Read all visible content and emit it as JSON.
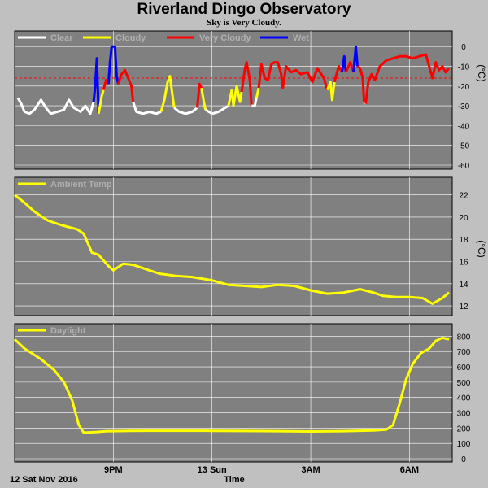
{
  "title": "Riverland Dingo Observatory",
  "subtitle": "Sky is Very Cloudy.",
  "colors": {
    "background": "#c0c0c0",
    "panel": "#808080",
    "grid": "#ffffff",
    "threshold": "#ff0000",
    "clear": "#ffffff",
    "cloudy": "#ffff00",
    "very_cloudy": "#ff0000",
    "wet": "#0000ff",
    "ambient": "#ffff00",
    "daylight": "#ffff00"
  },
  "x_axis": {
    "label": "Time",
    "date_label": "12 Sat Nov 2016",
    "range_hours": [
      18.0,
      31.3
    ],
    "ticks": [
      {
        "hour": 21,
        "label": "9PM"
      },
      {
        "hour": 24,
        "label": "13 Sun"
      },
      {
        "hour": 27,
        "label": "3AM"
      },
      {
        "hour": 30,
        "label": "6AM"
      }
    ]
  },
  "chart_data": [
    {
      "type": "line",
      "name": "sky",
      "unit": "(°C)",
      "ylim": [
        -60,
        5
      ],
      "yticks": [
        0,
        -10,
        -20,
        -30,
        -40,
        -50,
        -60
      ],
      "grid": true,
      "legend": [
        {
          "name": "Clear",
          "color": "#ffffff"
        },
        {
          "name": "Cloudy",
          "color": "#ffff00"
        },
        {
          "name": "Very Cloudy",
          "color": "#ff0000"
        },
        {
          "name": "Wet",
          "color": "#0000ff"
        }
      ],
      "threshold": -16,
      "segments": [
        {
          "cat": "clear",
          "points": [
            [
              18.1,
              -26
            ],
            [
              18.2,
              -29
            ],
            [
              18.3,
              -33
            ],
            [
              18.45,
              -34
            ],
            [
              18.6,
              -32
            ],
            [
              18.8,
              -27
            ],
            [
              18.95,
              -31
            ],
            [
              19.1,
              -34
            ],
            [
              19.3,
              -33
            ],
            [
              19.5,
              -32
            ],
            [
              19.65,
              -27
            ],
            [
              19.8,
              -31
            ],
            [
              20.0,
              -33
            ],
            [
              20.15,
              -30
            ],
            [
              20.3,
              -34
            ],
            [
              20.4,
              -28
            ]
          ]
        },
        {
          "cat": "wet",
          "points": [
            [
              20.4,
              -28
            ],
            [
              20.45,
              -20
            ],
            [
              20.5,
              -6
            ],
            [
              20.55,
              -34
            ]
          ]
        },
        {
          "cat": "cloudy",
          "points": [
            [
              20.55,
              -34
            ],
            [
              20.65,
              -25
            ],
            [
              20.7,
              -22
            ]
          ]
        },
        {
          "cat": "very_cloudy",
          "points": [
            [
              20.7,
              -22
            ],
            [
              20.78,
              -17
            ],
            [
              20.85,
              -19
            ]
          ]
        },
        {
          "cat": "wet",
          "points": [
            [
              20.85,
              -19
            ],
            [
              20.9,
              -8
            ],
            [
              20.95,
              0
            ],
            [
              21.05,
              0
            ],
            [
              21.1,
              -15
            ],
            [
              21.15,
              -19
            ]
          ]
        },
        {
          "cat": "very_cloudy",
          "points": [
            [
              21.15,
              -19
            ],
            [
              21.25,
              -14
            ],
            [
              21.35,
              -12
            ],
            [
              21.45,
              -16
            ],
            [
              21.55,
              -20
            ],
            [
              21.6,
              -28
            ]
          ]
        },
        {
          "cat": "clear",
          "points": [
            [
              21.6,
              -28
            ],
            [
              21.7,
              -33
            ],
            [
              21.9,
              -34
            ],
            [
              22.1,
              -33
            ],
            [
              22.3,
              -34
            ],
            [
              22.45,
              -33
            ]
          ]
        },
        {
          "cat": "cloudy",
          "points": [
            [
              22.45,
              -33
            ],
            [
              22.55,
              -27
            ],
            [
              22.65,
              -18
            ],
            [
              22.72,
              -15
            ],
            [
              22.8,
              -25
            ],
            [
              22.85,
              -31
            ]
          ]
        },
        {
          "cat": "clear",
          "points": [
            [
              22.85,
              -31
            ],
            [
              23.0,
              -33
            ],
            [
              23.2,
              -34
            ],
            [
              23.4,
              -33
            ],
            [
              23.55,
              -31
            ]
          ]
        },
        {
          "cat": "very_cloudy",
          "points": [
            [
              23.55,
              -31
            ],
            [
              23.62,
              -19
            ],
            [
              23.68,
              -21
            ]
          ]
        },
        {
          "cat": "cloudy",
          "points": [
            [
              23.68,
              -21
            ],
            [
              23.75,
              -28
            ],
            [
              23.8,
              -32
            ]
          ]
        },
        {
          "cat": "clear",
          "points": [
            [
              23.8,
              -32
            ],
            [
              24.0,
              -34
            ],
            [
              24.2,
              -33
            ],
            [
              24.4,
              -31
            ],
            [
              24.5,
              -30
            ]
          ]
        },
        {
          "cat": "cloudy",
          "points": [
            [
              24.5,
              -30
            ],
            [
              24.6,
              -22
            ],
            [
              24.65,
              -30
            ],
            [
              24.75,
              -20
            ],
            [
              24.85,
              -28
            ],
            [
              24.9,
              -23
            ]
          ]
        },
        {
          "cat": "very_cloudy",
          "points": [
            [
              24.9,
              -23
            ],
            [
              25.0,
              -11
            ],
            [
              25.05,
              -8
            ],
            [
              25.15,
              -17
            ],
            [
              25.2,
              -30
            ]
          ]
        },
        {
          "cat": "clear",
          "points": [
            [
              25.2,
              -30
            ],
            [
              25.3,
              -30
            ],
            [
              25.35,
              -26
            ]
          ]
        },
        {
          "cat": "cloudy",
          "points": [
            [
              25.35,
              -26
            ],
            [
              25.42,
              -21
            ]
          ]
        },
        {
          "cat": "very_cloudy",
          "points": [
            [
              25.42,
              -21
            ],
            [
              25.5,
              -9
            ],
            [
              25.6,
              -16
            ],
            [
              25.7,
              -17
            ],
            [
              25.8,
              -9
            ],
            [
              25.9,
              -8
            ],
            [
              26.0,
              -8
            ],
            [
              26.1,
              -14
            ],
            [
              26.15,
              -21
            ],
            [
              26.25,
              -10
            ],
            [
              26.4,
              -13
            ],
            [
              26.55,
              -12
            ],
            [
              26.7,
              -14
            ],
            [
              26.9,
              -13
            ],
            [
              27.05,
              -18
            ],
            [
              27.2,
              -11
            ],
            [
              27.4,
              -16
            ],
            [
              27.5,
              -22
            ]
          ]
        },
        {
          "cat": "cloudy",
          "points": [
            [
              27.5,
              -22
            ],
            [
              27.6,
              -18
            ],
            [
              27.65,
              -27
            ],
            [
              27.72,
              -18
            ]
          ]
        },
        {
          "cat": "very_cloudy",
          "points": [
            [
              27.72,
              -18
            ],
            [
              27.85,
              -10
            ],
            [
              27.95,
              -13
            ]
          ]
        },
        {
          "cat": "wet",
          "points": [
            [
              27.95,
              -13
            ],
            [
              28.02,
              -5
            ],
            [
              28.07,
              -13
            ]
          ]
        },
        {
          "cat": "very_cloudy",
          "points": [
            [
              28.07,
              -13
            ],
            [
              28.2,
              -8
            ],
            [
              28.3,
              -13
            ]
          ]
        },
        {
          "cat": "wet",
          "points": [
            [
              28.3,
              -13
            ],
            [
              28.37,
              0
            ],
            [
              28.42,
              -10
            ]
          ]
        },
        {
          "cat": "very_cloudy",
          "points": [
            [
              28.42,
              -10
            ],
            [
              28.5,
              -11
            ],
            [
              28.58,
              -16
            ],
            [
              28.62,
              -28
            ]
          ]
        },
        {
          "cat": "clear",
          "points": [
            [
              28.62,
              -28
            ],
            [
              28.67,
              -29
            ]
          ]
        },
        {
          "cat": "very_cloudy",
          "points": [
            [
              28.67,
              -29
            ],
            [
              28.75,
              -18
            ],
            [
              28.85,
              -14
            ],
            [
              28.95,
              -17
            ],
            [
              29.1,
              -10
            ],
            [
              29.3,
              -7
            ],
            [
              29.5,
              -6
            ],
            [
              29.7,
              -5
            ],
            [
              29.9,
              -5
            ],
            [
              30.1,
              -6
            ],
            [
              30.3,
              -5
            ],
            [
              30.5,
              -4
            ],
            [
              30.6,
              -10
            ],
            [
              30.7,
              -16
            ],
            [
              30.8,
              -8
            ],
            [
              30.9,
              -12
            ],
            [
              31.0,
              -10
            ],
            [
              31.1,
              -13
            ],
            [
              31.2,
              -11
            ]
          ]
        }
      ]
    },
    {
      "type": "line",
      "name": "Ambient Temp",
      "unit": "(°C)",
      "ylim": [
        11.2,
        23
      ],
      "yticks": [
        22,
        20,
        18,
        16,
        14,
        12
      ],
      "grid": true,
      "legend": [
        {
          "name": "Ambient Temp",
          "color": "#ffff00"
        }
      ],
      "series": [
        {
          "name": "Ambient Temp",
          "points": [
            [
              18.0,
              22.0
            ],
            [
              18.3,
              21.3
            ],
            [
              18.6,
              20.5
            ],
            [
              19.0,
              19.7
            ],
            [
              19.4,
              19.3
            ],
            [
              19.9,
              18.9
            ],
            [
              20.1,
              18.5
            ],
            [
              20.35,
              16.8
            ],
            [
              20.55,
              16.6
            ],
            [
              20.85,
              15.6
            ],
            [
              21.0,
              15.2
            ],
            [
              21.3,
              15.8
            ],
            [
              21.6,
              15.7
            ],
            [
              22.0,
              15.3
            ],
            [
              22.4,
              14.9
            ],
            [
              22.9,
              14.7
            ],
            [
              23.4,
              14.6
            ],
            [
              24.0,
              14.3
            ],
            [
              24.5,
              13.9
            ],
            [
              25.0,
              13.8
            ],
            [
              25.5,
              13.7
            ],
            [
              26.0,
              13.9
            ],
            [
              26.5,
              13.8
            ],
            [
              27.0,
              13.4
            ],
            [
              27.5,
              13.1
            ],
            [
              28.0,
              13.2
            ],
            [
              28.5,
              13.5
            ],
            [
              28.9,
              13.2
            ],
            [
              29.2,
              12.9
            ],
            [
              29.6,
              12.8
            ],
            [
              30.0,
              12.8
            ],
            [
              30.4,
              12.7
            ],
            [
              30.7,
              12.2
            ],
            [
              31.0,
              12.7
            ],
            [
              31.2,
              13.2
            ]
          ]
        }
      ]
    },
    {
      "type": "line",
      "name": "Daylight",
      "unit": "",
      "ylim": [
        0,
        850
      ],
      "yticks": [
        800,
        700,
        600,
        500,
        400,
        300,
        200,
        100,
        0
      ],
      "grid": true,
      "legend": [
        {
          "name": "Daylight",
          "color": "#ffff00"
        }
      ],
      "series": [
        {
          "name": "Daylight",
          "points": [
            [
              18.0,
              780
            ],
            [
              18.3,
              720
            ],
            [
              18.8,
              650
            ],
            [
              19.2,
              580
            ],
            [
              19.5,
              500
            ],
            [
              19.75,
              380
            ],
            [
              19.95,
              220
            ],
            [
              20.1,
              170
            ],
            [
              20.5,
              175
            ],
            [
              20.8,
              180
            ],
            [
              21.0,
              180
            ],
            [
              21.5,
              182
            ],
            [
              22.0,
              183
            ],
            [
              23.0,
              183
            ],
            [
              24.0,
              182
            ],
            [
              25.0,
              181
            ],
            [
              26.0,
              180
            ],
            [
              27.0,
              178
            ],
            [
              28.0,
              180
            ],
            [
              28.9,
              185
            ],
            [
              29.3,
              190
            ],
            [
              29.5,
              220
            ],
            [
              29.7,
              360
            ],
            [
              29.9,
              520
            ],
            [
              30.1,
              620
            ],
            [
              30.35,
              690
            ],
            [
              30.6,
              720
            ],
            [
              30.8,
              770
            ],
            [
              31.0,
              790
            ],
            [
              31.2,
              780
            ]
          ]
        }
      ]
    }
  ]
}
